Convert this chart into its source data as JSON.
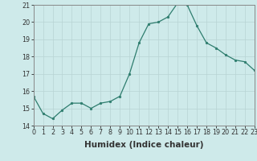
{
  "x": [
    0,
    1,
    2,
    3,
    4,
    5,
    6,
    7,
    8,
    9,
    10,
    11,
    12,
    13,
    14,
    15,
    16,
    17,
    18,
    19,
    20,
    21,
    22,
    23
  ],
  "y": [
    15.7,
    14.7,
    14.4,
    14.9,
    15.3,
    15.3,
    15.0,
    15.3,
    15.4,
    15.7,
    17.0,
    18.8,
    19.9,
    20.0,
    20.3,
    21.1,
    21.0,
    19.8,
    18.8,
    18.5,
    18.1,
    17.8,
    17.7,
    17.2
  ],
  "xlabel": "Humidex (Indice chaleur)",
  "ylim": [
    14,
    21
  ],
  "xlim": [
    0,
    23
  ],
  "yticks": [
    14,
    15,
    16,
    17,
    18,
    19,
    20,
    21
  ],
  "xticks": [
    0,
    1,
    2,
    3,
    4,
    5,
    6,
    7,
    8,
    9,
    10,
    11,
    12,
    13,
    14,
    15,
    16,
    17,
    18,
    19,
    20,
    21,
    22,
    23
  ],
  "line_color": "#2e7d6e",
  "marker_color": "#2e7d6e",
  "bg_color": "#ceeaea",
  "grid_color": "#b8d4d4",
  "grid_color_minor": "#daeaea",
  "tick_label_fontsize": 5.8,
  "xlabel_fontsize": 7.5,
  "xlabel_fontweight": "bold"
}
